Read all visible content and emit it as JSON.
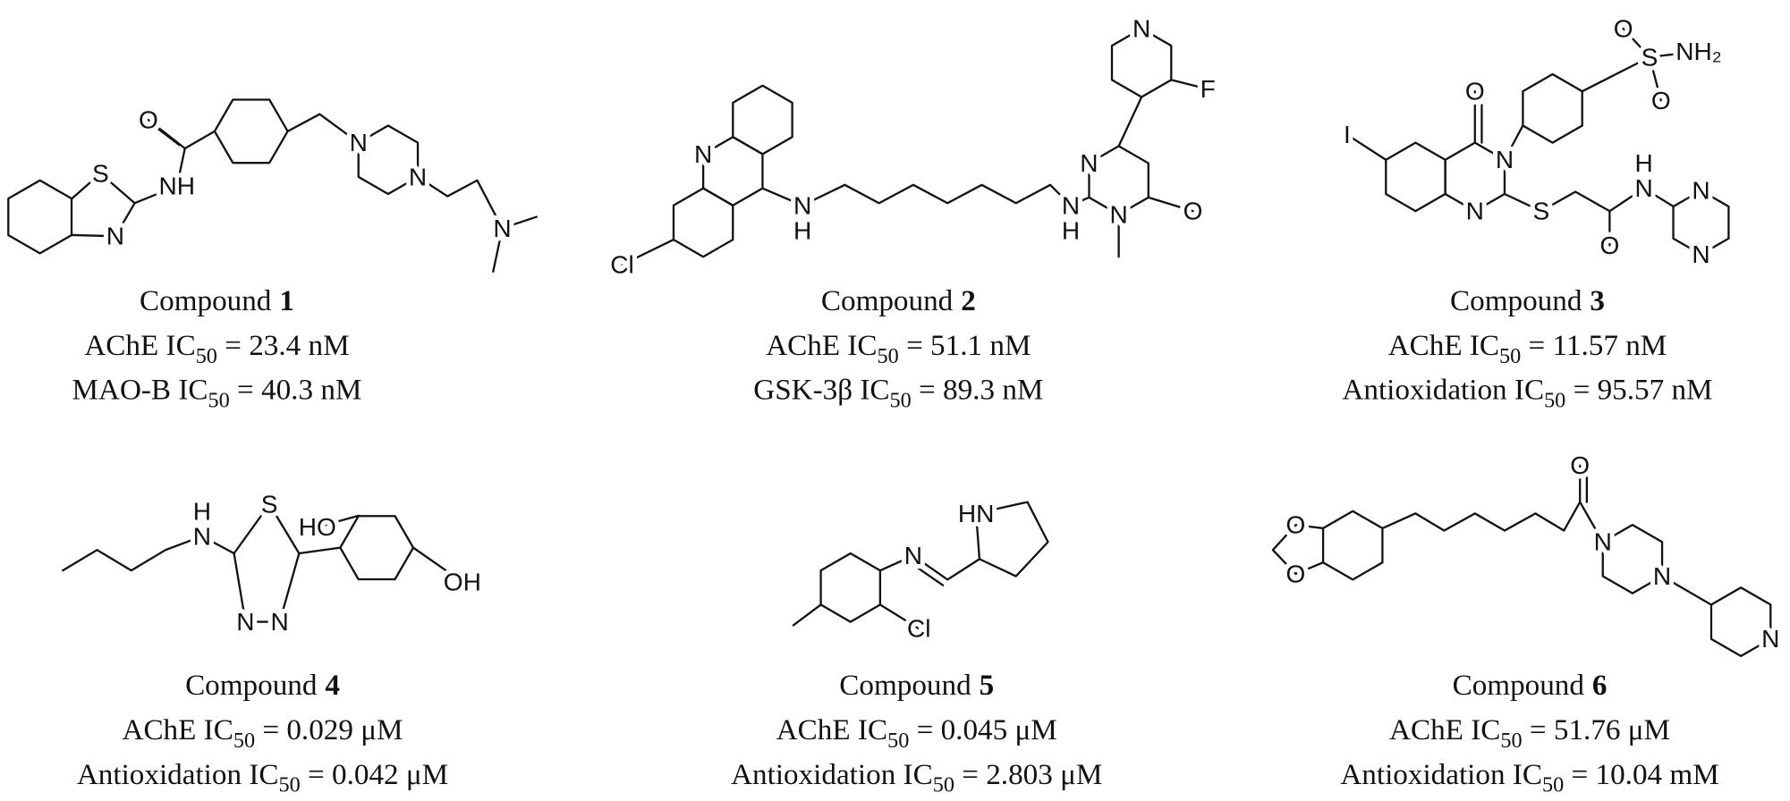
{
  "compounds": [
    {
      "label": "Compound",
      "number": "1",
      "activities": [
        {
          "name": "AChE IC",
          "subscript": "50",
          "value": " = 23.4 nM"
        },
        {
          "name": "MAO-B IC",
          "subscript": "50",
          "value": " = 40.3 nM"
        }
      ],
      "atoms": [
        "S",
        "N",
        "NH",
        "O",
        "N",
        "N",
        "N"
      ]
    },
    {
      "label": "Compound",
      "number": "2",
      "activities": [
        {
          "name": "AChE IC",
          "subscript": "50",
          "value": " = 51.1 nM"
        },
        {
          "name": "GSK-3β IC",
          "subscript": "50",
          "value": " = 89.3 nM"
        }
      ],
      "atoms": [
        "N",
        "N",
        "H",
        "Cl",
        "N",
        "H",
        "N",
        "N",
        "O",
        "N",
        "F"
      ]
    },
    {
      "label": "Compound",
      "number": "3",
      "activities": [
        {
          "name": "AChE IC",
          "subscript": "50",
          "value": " = 11.57 nM"
        },
        {
          "name": "Antioxidation IC",
          "subscript": "50",
          "value": " = 95.57 nM"
        }
      ],
      "atoms": [
        "I",
        "O",
        "N",
        "N",
        "S",
        "O",
        "N",
        "H",
        "N",
        "N",
        "S",
        "O",
        "O",
        "NH₂"
      ]
    },
    {
      "label": "Compound",
      "number": "4",
      "activities": [
        {
          "name": "AChE IC",
          "subscript": "50",
          "value": " = 0.029 μM"
        },
        {
          "name": "Antioxidation IC",
          "subscript": "50",
          "value": " = 0.042 μM"
        }
      ],
      "atoms": [
        "H",
        "N",
        "S",
        "N",
        "N",
        "HO",
        "OH"
      ]
    },
    {
      "label": "Compound",
      "number": "5",
      "activities": [
        {
          "name": "AChE IC",
          "subscript": "50",
          "value": " = 0.045 μM"
        },
        {
          "name": "Antioxidation IC",
          "subscript": "50",
          "value": " = 2.803 μM"
        }
      ],
      "atoms": [
        "N",
        "HN",
        "Cl"
      ]
    },
    {
      "label": "Compound",
      "number": "6",
      "activities": [
        {
          "name": "AChE IC",
          "subscript": "50",
          "value": " = 51.76 μM"
        },
        {
          "name": "Antioxidation IC",
          "subscript": "50",
          "value": " = 10.04 mM"
        }
      ],
      "atoms": [
        "O",
        "O",
        "O",
        "N",
        "N",
        "N"
      ]
    }
  ]
}
